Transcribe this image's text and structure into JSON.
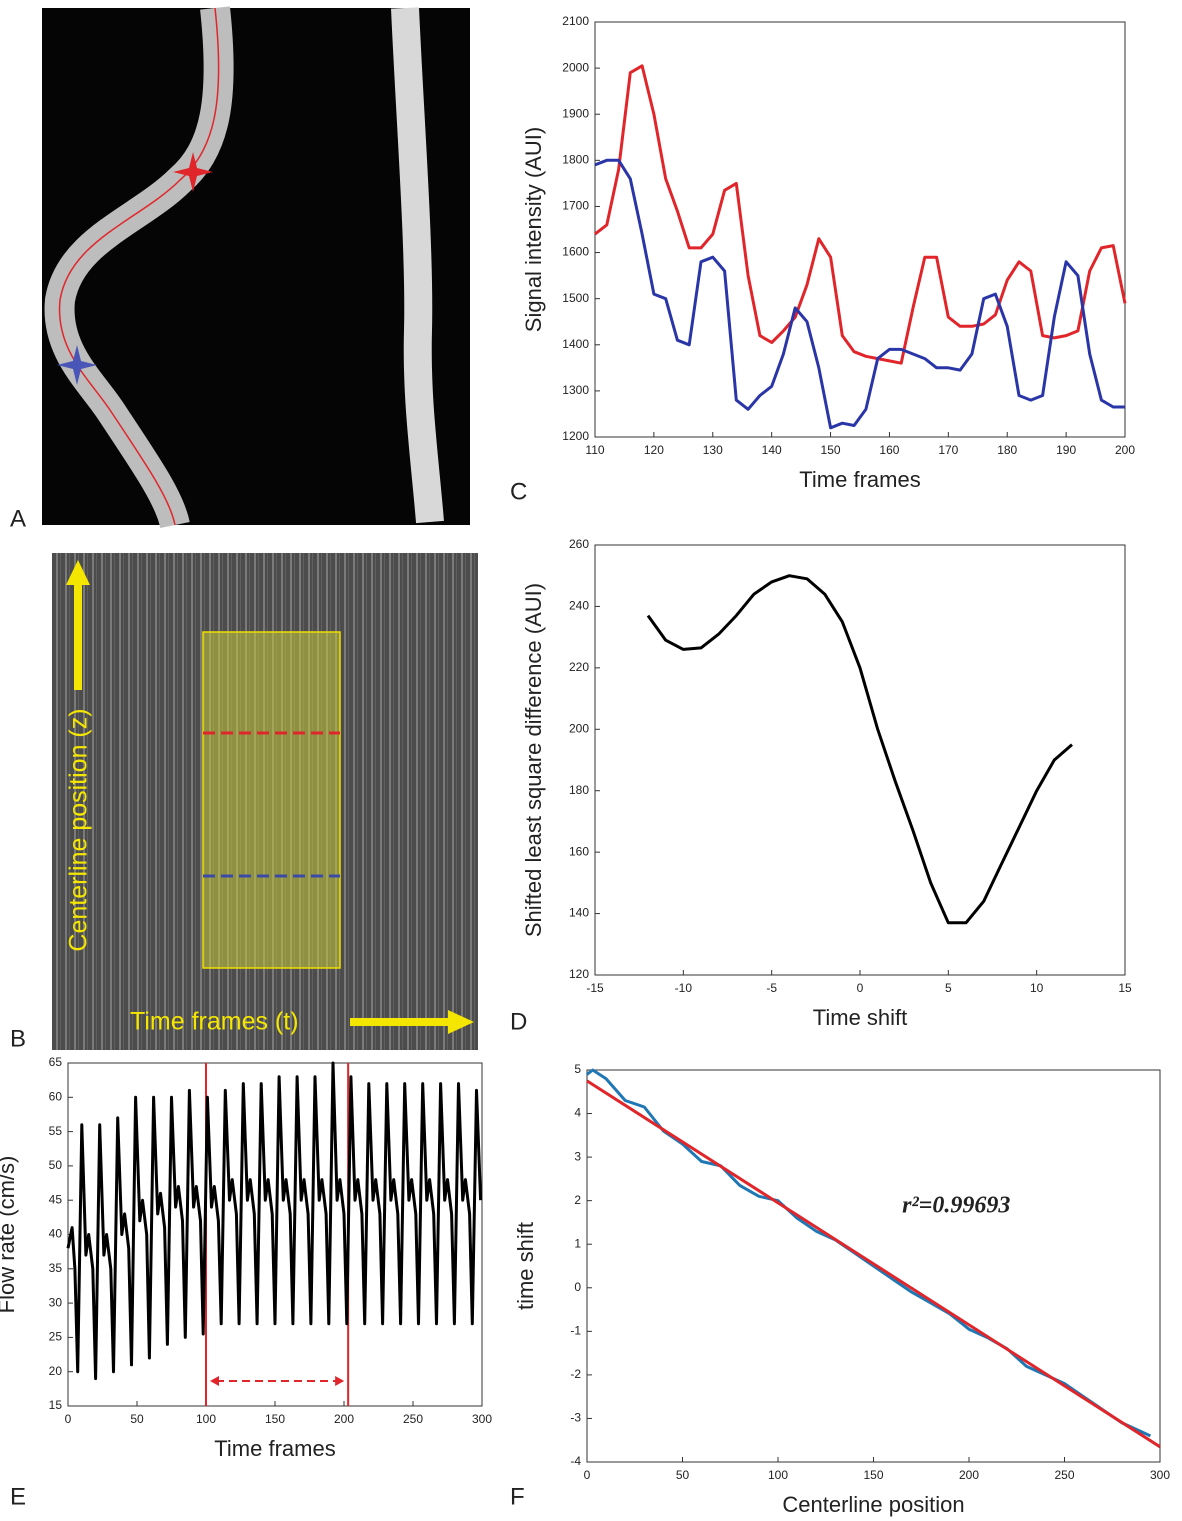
{
  "images": [
    {
      "label": "A"
    },
    {
      "label": "B",
      "y_axis_text": "Centerline position (z)",
      "x_axis_text": "Time frames (t)"
    }
  ],
  "chart_data": [
    {
      "label": "C",
      "type": "line",
      "xlabel": "Time frames",
      "ylabel": "Signal intensity (AUI)",
      "xlim": [
        110,
        200
      ],
      "ylim": [
        1200,
        2100
      ],
      "xticks": [
        110,
        120,
        130,
        140,
        150,
        160,
        170,
        180,
        190,
        200
      ],
      "yticks": [
        1200,
        1300,
        1400,
        1500,
        1600,
        1700,
        1800,
        1900,
        2000,
        2100
      ],
      "x": [
        110,
        112,
        114,
        116,
        118,
        120,
        122,
        124,
        126,
        128,
        130,
        132,
        134,
        136,
        138,
        140,
        142,
        144,
        146,
        148,
        150,
        152,
        154,
        156,
        158,
        160,
        162,
        164,
        166,
        168,
        170,
        172,
        174,
        176,
        178,
        180,
        182,
        184,
        186,
        188,
        190,
        192,
        194,
        196,
        198,
        200
      ],
      "series": [
        {
          "color": "#e0262b",
          "values": [
            1640,
            1660,
            1780,
            1990,
            2005,
            1900,
            1760,
            1690,
            1610,
            1610,
            1640,
            1735,
            1750,
            1550,
            1420,
            1405,
            1430,
            1460,
            1530,
            1630,
            1590,
            1420,
            1385,
            1375,
            1370,
            1365,
            1360,
            1480,
            1590,
            1590,
            1460,
            1440,
            1440,
            1445,
            1465,
            1540,
            1580,
            1560,
            1420,
            1415,
            1420,
            1430,
            1560,
            1610,
            1615,
            1490
          ]
        },
        {
          "color": "#2a36a8",
          "values": [
            1790,
            1800,
            1800,
            1760,
            1640,
            1510,
            1500,
            1410,
            1400,
            1580,
            1590,
            1560,
            1280,
            1260,
            1290,
            1310,
            1380,
            1480,
            1450,
            1350,
            1220,
            1230,
            1225,
            1260,
            1370,
            1390,
            1390,
            1380,
            1370,
            1350,
            1350,
            1345,
            1380,
            1500,
            1510,
            1440,
            1290,
            1280,
            1290,
            1460,
            1580,
            1550,
            1380,
            1280,
            1265,
            1265
          ]
        }
      ]
    },
    {
      "label": "D",
      "type": "line",
      "xlabel": "Time shift",
      "ylabel": "Shifted least square difference (AUI)",
      "xlim": [
        -15,
        15
      ],
      "ylim": [
        120,
        260
      ],
      "xticks": [
        -15,
        -10,
        -5,
        0,
        5,
        10,
        15
      ],
      "yticks": [
        120,
        140,
        160,
        180,
        200,
        220,
        240,
        260
      ],
      "x": [
        -12,
        -11,
        -10,
        -9,
        -8,
        -7,
        -6,
        -5,
        -4,
        -3,
        -2,
        -1,
        0,
        1,
        2,
        3,
        4,
        5,
        6,
        7,
        8,
        9,
        10,
        11,
        12
      ],
      "series": [
        {
          "color": "#000000",
          "values": [
            237,
            229,
            226,
            226.5,
            231,
            237,
            244,
            248,
            250,
            249,
            244,
            235,
            220,
            200,
            183,
            167,
            150,
            137,
            137,
            144,
            156,
            168,
            180,
            190,
            195
          ]
        }
      ]
    },
    {
      "label": "E",
      "type": "line",
      "xlabel": "Time frames",
      "ylabel": "Flow rate (cm/s)",
      "xlim": [
        0,
        300
      ],
      "ylim": [
        15,
        65
      ],
      "xticks": [
        0,
        50,
        100,
        150,
        200,
        250,
        300
      ],
      "yticks": [
        15,
        20,
        25,
        30,
        35,
        40,
        45,
        50,
        55,
        60,
        65
      ],
      "x": [
        0,
        3,
        5,
        7,
        10,
        13,
        15,
        18,
        20,
        23,
        26,
        28,
        31,
        33,
        36,
        39,
        41,
        44,
        46,
        49,
        52,
        54,
        57,
        59,
        62,
        65,
        67,
        70,
        72,
        75,
        78,
        80,
        83,
        85,
        88,
        91,
        93,
        96,
        98,
        101,
        104,
        106,
        109,
        111,
        114,
        117,
        119,
        122,
        124,
        127,
        130,
        132,
        135,
        137,
        140,
        143,
        145,
        148,
        150,
        153,
        156,
        158,
        161,
        163,
        166,
        169,
        171,
        174,
        176,
        179,
        182,
        184,
        187,
        189,
        192,
        195,
        197,
        200,
        202,
        205,
        208,
        210,
        213,
        215,
        218,
        221,
        223,
        226,
        228,
        231,
        234,
        236,
        239,
        241,
        244,
        247,
        249,
        252,
        254,
        257,
        260,
        262,
        265,
        267,
        270,
        273,
        275,
        278,
        280,
        283,
        286,
        288,
        291,
        293,
        296,
        299
      ],
      "series": [
        {
          "color": "#000000",
          "values": [
            38,
            41,
            35,
            20,
            56,
            37,
            40,
            35,
            19,
            56,
            37,
            40,
            35,
            20,
            57,
            40,
            43,
            38,
            21,
            60,
            42,
            45,
            40,
            22,
            60,
            43,
            46,
            41,
            24,
            60,
            44,
            47,
            42,
            25,
            61,
            44,
            47,
            42,
            25.5,
            60,
            44,
            47,
            42,
            27,
            61,
            45,
            48,
            43,
            27,
            62,
            45,
            48,
            43,
            27,
            62,
            45,
            48,
            43,
            27,
            63,
            45,
            48,
            43,
            27,
            63,
            45,
            48,
            43,
            27,
            63,
            45,
            48,
            43,
            27,
            65,
            45,
            48,
            43,
            27,
            63,
            45,
            48,
            43,
            27,
            62,
            45,
            48,
            43,
            27,
            62,
            45,
            48,
            43,
            27,
            62,
            45,
            48,
            43,
            27,
            62,
            45,
            48,
            43,
            27,
            62,
            45,
            48,
            43,
            27,
            62,
            45,
            48,
            43,
            27,
            61,
            45
          ]
        }
      ],
      "vlines": [
        100,
        203
      ],
      "vline_color": "#e0262b"
    },
    {
      "label": "F",
      "type": "line",
      "xlabel": "Centerline position",
      "ylabel": "time shift",
      "xlim": [
        0,
        300
      ],
      "ylim": [
        -4,
        5
      ],
      "xticks": [
        0,
        50,
        100,
        150,
        200,
        250,
        300
      ],
      "yticks": [
        -4,
        -3,
        -2,
        -1,
        0,
        1,
        2,
        3,
        4,
        5
      ],
      "annotation": "r²=0.99693",
      "series": [
        {
          "color": "#1f77b4",
          "x": [
            0,
            3,
            10,
            20,
            30,
            40,
            50,
            60,
            70,
            80,
            90,
            100,
            110,
            120,
            130,
            140,
            150,
            160,
            170,
            180,
            190,
            200,
            210,
            220,
            230,
            240,
            250,
            260,
            270,
            280,
            290,
            295
          ],
          "values": [
            4.9,
            5.0,
            4.8,
            4.3,
            4.15,
            3.6,
            3.3,
            2.9,
            2.8,
            2.35,
            2.1,
            2.0,
            1.6,
            1.3,
            1.1,
            0.8,
            0.5,
            0.2,
            -0.1,
            -0.35,
            -0.6,
            -0.95,
            -1.15,
            -1.4,
            -1.8,
            -2.0,
            -2.2,
            -2.5,
            -2.8,
            -3.1,
            -3.3,
            -3.4
          ]
        },
        {
          "color": "#e0262b",
          "x": [
            0,
            300
          ],
          "values": [
            4.75,
            -3.65
          ]
        }
      ]
    }
  ]
}
